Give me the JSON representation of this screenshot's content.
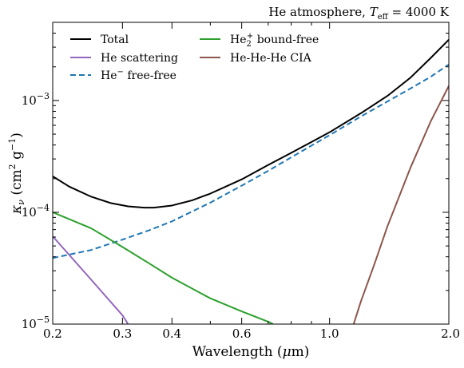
{
  "chart_data": {
    "type": "line",
    "title": "He atmosphere, T_eff = 4000 K",
    "title_parts": {
      "prefix": "He atmosphere, ",
      "var": "T",
      "sub": "eff",
      "suffix": " = 4000 K"
    },
    "xlabel": "Wavelength (μm)",
    "xlabel_parts": {
      "prefix": "Wavelength (",
      "var": "μ",
      "suffix": "m)"
    },
    "ylabel": "κ_ν (cm² g⁻¹)",
    "ylabel_parts": {
      "var": "κ",
      "sub": "ν",
      "unit_open": " (cm",
      "sup1": "2",
      "unit_mid": " g",
      "sup2": "−1",
      "unit_close": ")"
    },
    "xscale": "log",
    "yscale": "log",
    "xlim": [
      0.2,
      2.0
    ],
    "ylim": [
      1e-05,
      0.005
    ],
    "grid": false,
    "legend_location": "top-left",
    "x_ticks": [
      {
        "value": 0.2,
        "label": "0.2"
      },
      {
        "value": 0.3,
        "label": "0.3"
      },
      {
        "value": 0.4,
        "label": "0.4"
      },
      {
        "value": 0.6,
        "label": "0.6"
      },
      {
        "value": 1.0,
        "label": "1.0"
      },
      {
        "value": 2.0,
        "label": "2.0"
      }
    ],
    "y_ticks": [
      {
        "value": 1e-05,
        "base": "10",
        "exp": "−5"
      },
      {
        "value": 0.0001,
        "base": "10",
        "exp": "−4"
      },
      {
        "value": 0.001,
        "base": "10",
        "exp": "−3"
      }
    ],
    "series": [
      {
        "name": "Total",
        "color": "#000000",
        "dash": "solid",
        "x": [
          0.2,
          0.22,
          0.25,
          0.28,
          0.31,
          0.34,
          0.36,
          0.4,
          0.45,
          0.5,
          0.6,
          0.7,
          0.8,
          1.0,
          1.2,
          1.4,
          1.6,
          1.8,
          2.0
        ],
        "y": [
          0.00021,
          0.00017,
          0.000138,
          0.000121,
          0.000113,
          0.00011,
          0.00011,
          0.000115,
          0.000128,
          0.000147,
          0.000197,
          0.000265,
          0.00034,
          0.00052,
          0.00077,
          0.0011,
          0.0016,
          0.0024,
          0.0035
        ]
      },
      {
        "name": "He scattering",
        "color": "#9467bd",
        "dash": "solid",
        "x": [
          0.2,
          0.25,
          0.3,
          0.31
        ],
        "y": [
          6.1e-05,
          2.5e-05,
          1.2e-05,
          1e-05
        ]
      },
      {
        "name": "He⁻ free-free",
        "label_parts": {
          "text": "He",
          "sup": "−",
          "suffix": " free-free"
        },
        "color": "#1f77b4",
        "dash": "dashed",
        "x": [
          0.2,
          0.25,
          0.3,
          0.35,
          0.4,
          0.5,
          0.6,
          0.7,
          0.8,
          1.0,
          1.2,
          1.4,
          1.6,
          1.8,
          2.0
        ],
        "y": [
          3.9e-05,
          4.6e-05,
          5.7e-05,
          6.9e-05,
          8.3e-05,
          0.000122,
          0.000173,
          0.000235,
          0.00031,
          0.00049,
          0.00072,
          0.00098,
          0.00128,
          0.00163,
          0.0021
        ]
      },
      {
        "name": "He₂⁺ bound-free",
        "label_parts": {
          "text": "He",
          "sub": "2",
          "sup": "+",
          "suffix": " bound-free"
        },
        "color": "#2ca02c",
        "dash": "solid",
        "x": [
          0.2,
          0.25,
          0.3,
          0.35,
          0.4,
          0.5,
          0.6,
          0.7,
          0.72
        ],
        "y": [
          0.0001,
          7.2e-05,
          4.9e-05,
          3.5e-05,
          2.6e-05,
          1.7e-05,
          1.3e-05,
          1.05e-05,
          1e-05
        ]
      },
      {
        "name": "He-He-He CIA",
        "color": "#8c564b",
        "dash": "solid",
        "x": [
          1.15,
          1.2,
          1.3,
          1.4,
          1.6,
          1.8,
          2.0
        ],
        "y": [
          1e-05,
          1.6e-05,
          3.5e-05,
          7.5e-05,
          0.00025,
          0.00065,
          0.00135
        ]
      }
    ]
  }
}
